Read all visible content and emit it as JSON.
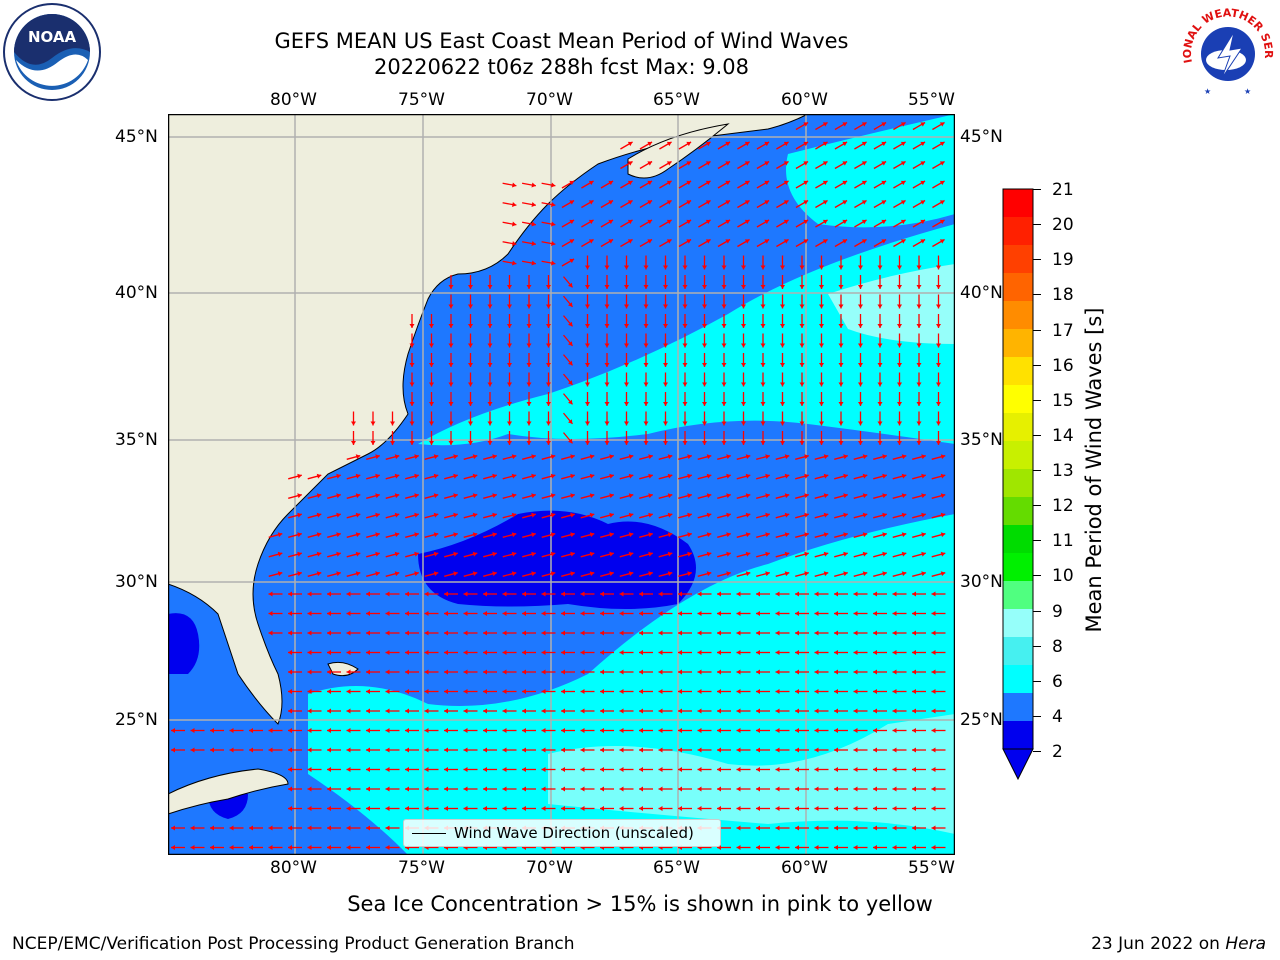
{
  "header": {
    "title_line1": "GEFS MEAN US East Coast Mean Period of Wind Waves",
    "title_line2": "20220622 t06z 288h fcst   Max: 9.08"
  },
  "map": {
    "lon_labels": [
      "80°W",
      "75°W",
      "70°W",
      "65°W",
      "60°W",
      "55°W"
    ],
    "lat_labels": [
      "45°N",
      "40°N",
      "35°N",
      "30°N",
      "25°N"
    ],
    "legend_label": "Wind Wave Direction (unscaled)",
    "colors": {
      "land": "#eeeedd",
      "deep": "#0000ee",
      "b2_4": "#1e78ff",
      "b4_6": "#00ffff",
      "b6_8": "#46f0f0",
      "b8_9": "#96fffa",
      "arrow": "#ff0000",
      "grid": "#b0b0b0"
    }
  },
  "colorbar": {
    "label": "Mean Period of Wind Waves [s]",
    "ticks": [
      "21",
      "20",
      "19",
      "18",
      "17",
      "16",
      "15",
      "14",
      "13",
      "12",
      "11",
      "10",
      "9",
      "8",
      "6",
      "4",
      "2"
    ],
    "colors": [
      "#ff0000",
      "#ff2000",
      "#ff4000",
      "#ff6400",
      "#ff8c00",
      "#ffb400",
      "#ffe100",
      "#ffff00",
      "#e6f000",
      "#c8f000",
      "#a0e600",
      "#64dc00",
      "#00dc00",
      "#00f000",
      "#50ff80",
      "#96fffa",
      "#46f0f0",
      "#00ffff",
      "#1e78ff",
      "#0000ee"
    ]
  },
  "footer": {
    "sea_ice_note": "Sea Ice Concentration > 15% is shown in pink to yellow",
    "branch": "NCEP/EMC/Verification Post Processing Product Generation Branch",
    "date_prefix": "23 Jun 2022 on ",
    "host": "Hera"
  },
  "logos": {
    "noaa_text": "NOAA",
    "nws_text": "NATIONAL WEATHER SERVICE"
  }
}
